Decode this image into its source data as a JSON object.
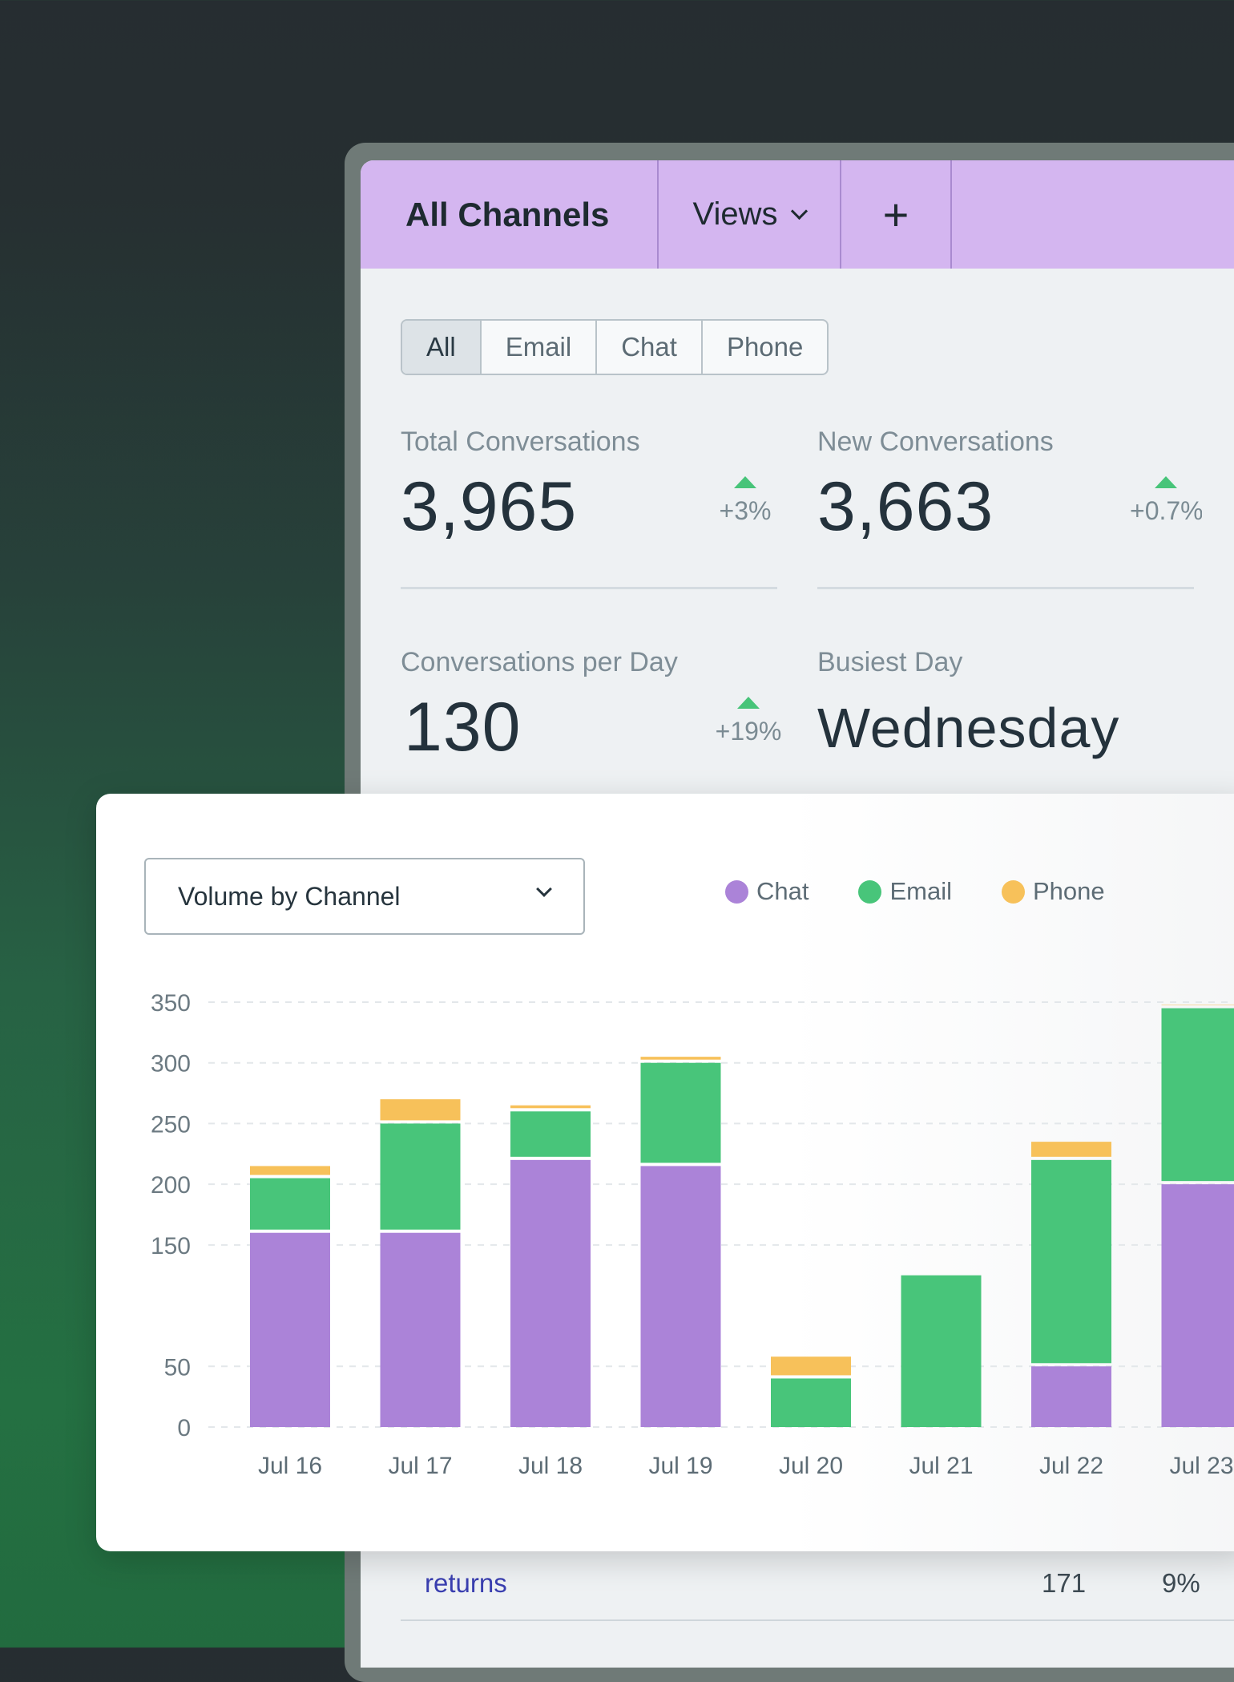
{
  "window": {
    "tabs": {
      "all_channels": "All Channels",
      "views": "Views",
      "add": "+"
    },
    "filter": [
      "All",
      "Email",
      "Chat",
      "Phone"
    ],
    "filter_selected": "All",
    "stats": {
      "total": {
        "label": "Total Conversations",
        "value": "3,965",
        "delta": "+3%"
      },
      "new": {
        "label": "New Conversations",
        "value": "3,663",
        "delta": "+0.7%"
      },
      "per_day": {
        "label": "Conversations per Day",
        "value": "130",
        "delta": "+19%"
      },
      "busiest": {
        "label": "Busiest Day",
        "value": "Wednesday"
      }
    },
    "table_row": {
      "name": "returns",
      "count": "171",
      "percent": "9%"
    }
  },
  "card": {
    "dropdown_label": "Volume by Channel",
    "legend": [
      {
        "name": "Chat",
        "color": "#ab83d8"
      },
      {
        "name": "Email",
        "color": "#48c57a"
      },
      {
        "name": "Phone",
        "color": "#f7c15a"
      }
    ]
  },
  "chart_data": {
    "type": "bar",
    "stacked": true,
    "categories": [
      "Jul 16",
      "Jul 17",
      "Jul 18",
      "Jul 19",
      "Jul 20",
      "Jul 21",
      "Jul 22",
      "Jul 23"
    ],
    "series": [
      {
        "name": "Chat",
        "color": "#ab83d8",
        "values": [
          160,
          160,
          220,
          215,
          0,
          0,
          50,
          200
        ]
      },
      {
        "name": "Email",
        "color": "#48c57a",
        "values": [
          45,
          90,
          40,
          85,
          40,
          125,
          170,
          145
        ]
      },
      {
        "name": "Phone",
        "color": "#f7c15a",
        "values": [
          10,
          20,
          5,
          5,
          18,
          0,
          15,
          3
        ]
      }
    ],
    "y_ticks": [
      0,
      50,
      150,
      200,
      250,
      300,
      350
    ],
    "ylim": [
      0,
      350
    ],
    "grid": true,
    "legend_position": "top-right"
  }
}
